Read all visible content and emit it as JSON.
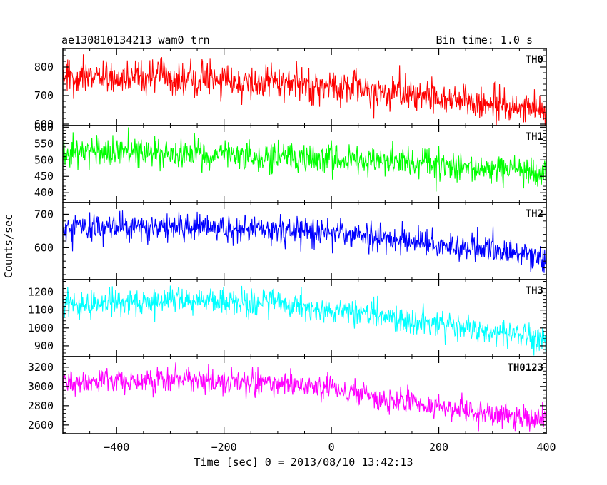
{
  "header": {
    "left_title": "ae130810134213_wam0_trn",
    "right_title": "Bin time: 1.0 s"
  },
  "chart_data": {
    "type": "line",
    "title": "ae130810134213_wam0_trn",
    "subtitle": "Bin time: 1.0 s",
    "xlabel": "Time [sec] 0 = 2013/08/10 13:42:13",
    "ylabel": "Counts/sec",
    "xlim": [
      -500,
      400
    ],
    "x_ticks": [
      -400,
      -200,
      0,
      200,
      400
    ],
    "x_tick_labels": [
      "−400",
      "−200",
      "0",
      "200",
      "400"
    ],
    "bin_time": 1.0,
    "grid": false,
    "panels": [
      {
        "name": "TH0",
        "color": "#ff0000",
        "ylim": [
          595,
          865
        ],
        "y_ticks": [
          600,
          700,
          800
        ],
        "y_tick_labels": [
          "600",
          "700",
          "800"
        ],
        "trend": [
          [
            -500,
            765
          ],
          [
            -300,
            762
          ],
          [
            -100,
            745
          ],
          [
            100,
            710
          ],
          [
            300,
            675
          ],
          [
            400,
            650
          ]
        ],
        "noise": 30
      },
      {
        "name": "TH1",
        "color": "#00ff00",
        "ylim": [
          370,
          605
        ],
        "y_ticks": [
          400,
          450,
          500,
          550,
          600
        ],
        "y_tick_labels": [
          "400",
          "450",
          "500",
          "550",
          "600"
        ],
        "trend": [
          [
            -500,
            525
          ],
          [
            -300,
            522
          ],
          [
            -100,
            508
          ],
          [
            100,
            492
          ],
          [
            300,
            470
          ],
          [
            400,
            462
          ]
        ],
        "noise": 24
      },
      {
        "name": "TH2",
        "color": "#0000ff",
        "ylim": [
          505,
          735
        ],
        "y_ticks": [
          600,
          700
        ],
        "y_tick_labels": [
          "600",
          "700"
        ],
        "trend": [
          [
            -500,
            663
          ],
          [
            -300,
            665
          ],
          [
            -100,
            655
          ],
          [
            100,
            628
          ],
          [
            300,
            590
          ],
          [
            400,
            573
          ]
        ],
        "noise": 22
      },
      {
        "name": "TH3",
        "color": "#00ffff",
        "ylim": [
          840,
          1270
        ],
        "y_ticks": [
          900,
          1000,
          1100,
          1200
        ],
        "y_tick_labels": [
          "900",
          "1000",
          "1100",
          "1200"
        ],
        "trend": [
          [
            -500,
            1125
          ],
          [
            -300,
            1150
          ],
          [
            -100,
            1140
          ],
          [
            100,
            1060
          ],
          [
            300,
            980
          ],
          [
            400,
            940
          ]
        ],
        "noise": 38
      },
      {
        "name": "TH0123",
        "color": "#ff00ff",
        "ylim": [
          2510,
          3310
        ],
        "y_ticks": [
          2600,
          2800,
          3000,
          3200
        ],
        "y_tick_labels": [
          "2600",
          "2800",
          "3000",
          "3200"
        ],
        "trend": [
          [
            -500,
            3030
          ],
          [
            -300,
            3065
          ],
          [
            -100,
            3030
          ],
          [
            0,
            2975
          ],
          [
            100,
            2870
          ],
          [
            300,
            2720
          ],
          [
            400,
            2640
          ]
        ],
        "noise": 65
      }
    ]
  }
}
